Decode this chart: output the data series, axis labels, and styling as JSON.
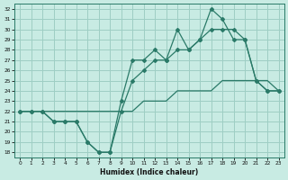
{
  "xlabel": "Humidex (Indice chaleur)",
  "bg_color": "#c8ebe3",
  "grid_color": "#9ecec4",
  "line_color": "#2a7a68",
  "xlim": [
    -0.5,
    23.5
  ],
  "ylim": [
    17.5,
    32.5
  ],
  "xticks": [
    0,
    1,
    2,
    3,
    4,
    5,
    6,
    7,
    8,
    9,
    10,
    11,
    12,
    13,
    14,
    15,
    16,
    17,
    18,
    19,
    20,
    21,
    22,
    23
  ],
  "yticks": [
    18,
    19,
    20,
    21,
    22,
    23,
    24,
    25,
    26,
    27,
    28,
    29,
    30,
    31,
    32
  ],
  "line_top": {
    "x": [
      0,
      1,
      2,
      3,
      4,
      5,
      6,
      7,
      8,
      9,
      10,
      11,
      12,
      13,
      14,
      15,
      16,
      17,
      18,
      19,
      20,
      21,
      22,
      23
    ],
    "y": [
      22,
      22,
      22,
      21,
      21,
      21,
      19,
      18,
      18,
      23,
      27,
      27,
      28,
      27,
      30,
      28,
      29,
      32,
      31,
      29,
      29,
      25,
      24,
      24
    ]
  },
  "line_mid": {
    "x": [
      0,
      1,
      2,
      3,
      4,
      5,
      6,
      7,
      8,
      9,
      10,
      11,
      12,
      13,
      14,
      15,
      16,
      17,
      18,
      19,
      20,
      21,
      22,
      23
    ],
    "y": [
      22,
      22,
      22,
      21,
      21,
      21,
      19,
      18,
      18,
      22,
      25,
      26,
      27,
      27,
      28,
      28,
      29,
      30,
      30,
      30,
      29,
      25,
      24,
      24
    ]
  },
  "line_bot": {
    "x": [
      0,
      1,
      2,
      3,
      4,
      5,
      6,
      7,
      8,
      9,
      10,
      11,
      12,
      13,
      14,
      15,
      16,
      17,
      18,
      19,
      20,
      21,
      22,
      23
    ],
    "y": [
      22,
      22,
      22,
      22,
      22,
      22,
      22,
      22,
      22,
      22,
      22,
      23,
      23,
      23,
      24,
      24,
      24,
      24,
      25,
      25,
      25,
      25,
      25,
      24
    ]
  }
}
